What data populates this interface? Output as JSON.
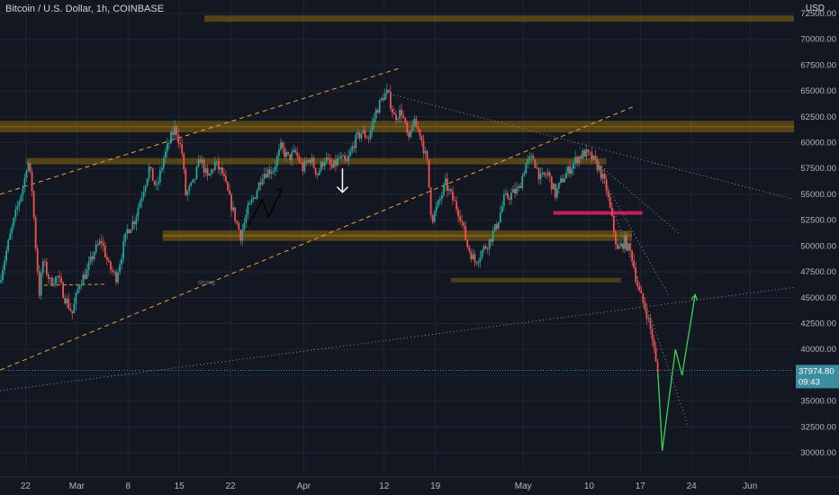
{
  "header": {
    "title": "Bitcoin / U.S. Dollar, 1h, COINBASE",
    "currency": "USD"
  },
  "price_tag": {
    "price": "37974.80",
    "countdown": "09:43"
  },
  "annotation_text": "strong",
  "colors": {
    "background": "#131722",
    "grid": "#1f2433",
    "up": "#26a69a",
    "down": "#ef5350",
    "zone": "#b8860b",
    "trend": "#f0a030",
    "pink": "#e91e63",
    "projection": "#39d353",
    "axis_text": "#b2b5be",
    "price_tag": "#3b8e9e"
  },
  "chart_data": {
    "type": "candlestick",
    "title": "Bitcoin / U.S. Dollar, 1h, COINBASE",
    "y_unit": "USD",
    "y_axis_ticks": [
      "72500.00",
      "70000.00",
      "67500.00",
      "65000.00",
      "62500.00",
      "60000.00",
      "57500.00",
      "55000.00",
      "52500.00",
      "50000.00",
      "47500.00",
      "45000.00",
      "42500.00",
      "40000.00",
      "37500.00",
      "35000.00",
      "32500.00",
      "30000.00"
    ],
    "y_tick_values": [
      72500,
      70000,
      67500,
      65000,
      62500,
      60000,
      57500,
      55000,
      52500,
      50000,
      47500,
      45000,
      42500,
      40000,
      37500,
      35000,
      32500,
      30000
    ],
    "ylim": [
      28000,
      73800
    ],
    "x_axis_labels": [
      "22",
      "Mar",
      "8",
      "15",
      "22",
      "Apr",
      "12",
      "19",
      "May",
      "10",
      "17",
      "24",
      "Jun"
    ],
    "x_tick_days": [
      -7,
      0,
      7,
      14,
      21,
      31,
      42,
      49,
      61,
      70,
      77,
      84,
      92
    ],
    "xlim": [
      -10.5,
      98
    ],
    "price_path": [
      [
        -10.5,
        46500
      ],
      [
        -9,
        51000
      ],
      [
        -7,
        56500
      ],
      [
        -6.6,
        58500
      ],
      [
        -6,
        55500
      ],
      [
        -5.5,
        50000
      ],
      [
        -5,
        45500
      ],
      [
        -4.5,
        48500
      ],
      [
        -3.5,
        46500
      ],
      [
        -2.5,
        47000
      ],
      [
        -1.5,
        45000
      ],
      [
        -0.5,
        43500
      ],
      [
        0.5,
        46500
      ],
      [
        1.5,
        47500
      ],
      [
        2.5,
        49500
      ],
      [
        3.5,
        50500
      ],
      [
        4.5,
        48000
      ],
      [
        5.5,
        47000
      ],
      [
        7,
        51500
      ],
      [
        8,
        52500
      ],
      [
        9,
        55000
      ],
      [
        10,
        57500
      ],
      [
        11,
        55500
      ],
      [
        12,
        58500
      ],
      [
        13,
        60500
      ],
      [
        13.6,
        61500
      ],
      [
        14.5,
        59000
      ],
      [
        15,
        55000
      ],
      [
        16,
        56000
      ],
      [
        17,
        58500
      ],
      [
        18,
        56500
      ],
      [
        19,
        58000
      ],
      [
        20,
        57000
      ],
      [
        21,
        54500
      ],
      [
        22.5,
        51000
      ],
      [
        23.5,
        53500
      ],
      [
        24.5,
        55000
      ],
      [
        25.5,
        57000
      ],
      [
        27,
        57500
      ],
      [
        28,
        59500
      ],
      [
        29,
        58500
      ],
      [
        30,
        59000
      ],
      [
        31,
        57500
      ],
      [
        32,
        58500
      ],
      [
        33,
        57000
      ],
      [
        34,
        58500
      ],
      [
        35,
        57500
      ],
      [
        36,
        58500
      ],
      [
        37,
        58000
      ],
      [
        38,
        60000
      ],
      [
        39,
        61000
      ],
      [
        40,
        60500
      ],
      [
        41,
        63000
      ],
      [
        42,
        64500
      ],
      [
        42.6,
        64800
      ],
      [
        43.5,
        62500
      ],
      [
        44.5,
        63000
      ],
      [
        45.5,
        60000
      ],
      [
        46,
        62000
      ],
      [
        47,
        61000
      ],
      [
        48,
        58000
      ],
      [
        48.6,
        52500
      ],
      [
        49.5,
        54000
      ],
      [
        50.5,
        56000
      ],
      [
        51.5,
        54500
      ],
      [
        52.5,
        53000
      ],
      [
        53.5,
        50000
      ],
      [
        54.5,
        48500
      ],
      [
        55.5,
        49500
      ],
      [
        56.5,
        50500
      ],
      [
        57.5,
        52000
      ],
      [
        58.5,
        54500
      ],
      [
        59.5,
        55000
      ],
      [
        60.5,
        55500
      ],
      [
        61.5,
        58000
      ],
      [
        62.5,
        58500
      ],
      [
        63.5,
        56500
      ],
      [
        64.5,
        57000
      ],
      [
        65.5,
        55000
      ],
      [
        66.5,
        56500
      ],
      [
        67.5,
        57500
      ],
      [
        68.5,
        58500
      ],
      [
        69.5,
        59000
      ],
      [
        70.5,
        58500
      ],
      [
        71.5,
        57500
      ],
      [
        72.5,
        55500
      ],
      [
        73.5,
        51500
      ],
      [
        74,
        49500
      ],
      [
        75,
        50500
      ],
      [
        76,
        49000
      ],
      [
        76.5,
        47000
      ],
      [
        77,
        45500
      ],
      [
        78,
        43500
      ],
      [
        78.8,
        41000
      ],
      [
        79.4,
        37800
      ]
    ],
    "horizontal_zones": [
      {
        "y": 72000,
        "x_from": 17.5,
        "x_to": 98,
        "style": "zone"
      },
      {
        "y": 61800,
        "x_from": -10.5,
        "x_to": 98,
        "style": "zone"
      },
      {
        "y": 61300,
        "x_from": -10.5,
        "x_to": 98,
        "style": "zone"
      },
      {
        "y": 58200,
        "x_from": -6.9,
        "x_to": 72.3,
        "style": "zone"
      },
      {
        "y": 51200,
        "x_from": 11.8,
        "x_to": 75.8,
        "style": "zone"
      },
      {
        "y": 50800,
        "x_from": 11.8,
        "x_to": 75.8,
        "style": "zone"
      },
      {
        "y": 46700,
        "x_from": 51.2,
        "x_to": 74.3,
        "style": "zone-thin"
      },
      {
        "y": 53200,
        "x_from": 65.1,
        "x_to": 77.3,
        "style": "pink"
      }
    ],
    "trend_lines": [
      {
        "p1": [
          -10.5,
          55000
        ],
        "p2": [
          44.1,
          67200
        ],
        "style": "dashed-orange"
      },
      {
        "p1": [
          -10.5,
          38000
        ],
        "p2": [
          76.1,
          63500
        ],
        "style": "dashed-orange"
      },
      {
        "p1": [
          -10.5,
          36000
        ],
        "p2": [
          98,
          46000
        ],
        "style": "dotted-gray"
      },
      {
        "p1": [
          42.3,
          64800
        ],
        "p2": [
          98,
          54500
        ],
        "style": "dotted-gray"
      },
      {
        "p1": [
          70.9,
          58500
        ],
        "p2": [
          83.6,
          32500
        ],
        "style": "dotted-gray"
      },
      {
        "p1": [
          68.7,
          59500
        ],
        "p2": [
          82.3,
          51200
        ],
        "style": "dotted-gray"
      },
      {
        "p1": [
          72.3,
          56000
        ],
        "p2": [
          80.9,
          45200
        ],
        "style": "dotted-gray"
      },
      {
        "p1": [
          -4.5,
          46200
        ],
        "p2": [
          3.9,
          46300
        ],
        "style": "dashed-orange-short"
      }
    ],
    "drawings": [
      {
        "type": "zigzag",
        "points": [
          [
            23.5,
            52000
          ],
          [
            25.3,
            54500
          ],
          [
            26.2,
            52800
          ],
          [
            28,
            55500
          ]
        ],
        "color": "#000000"
      },
      {
        "type": "arrow-down",
        "x": 36.3,
        "y_from": 57500,
        "y_to": 55200,
        "color": "#ffffff"
      },
      {
        "type": "projection",
        "points": [
          [
            79.4,
            37800
          ],
          [
            80.0,
            30200
          ],
          [
            81.8,
            40000
          ],
          [
            82.7,
            37500
          ],
          [
            84.5,
            45300
          ]
        ],
        "color": "#39d353"
      }
    ],
    "current_price": 37974.8,
    "grid": true
  }
}
